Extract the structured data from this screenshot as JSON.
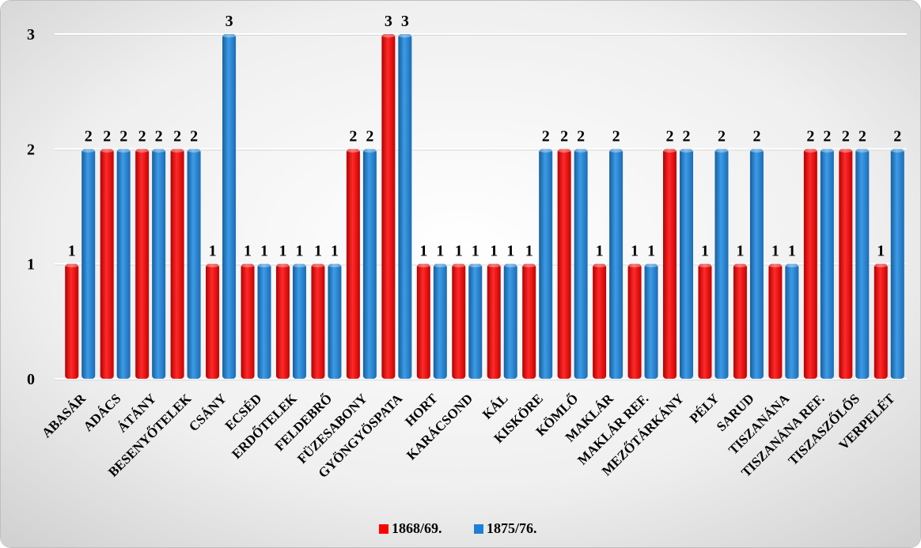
{
  "chart_data": {
    "type": "bar",
    "categories": [
      "ABASÁR",
      "ADÁCS",
      "ÁTÁNY",
      "BESENYŐTELEK",
      "CSÁNY",
      "ECSÉD",
      "ERDŐTELEK",
      "FELDEBRŐ",
      "FÜZESABONY",
      "GYÖNGYÖSPATA",
      "HORT",
      "KARÁCSOND",
      "KÁL",
      "KISKÖRE",
      "KÖMLŐ",
      "MAKLÁR",
      "MAKLÁR REF.",
      "MEZŐTÁRKÁNY",
      "PÉLY",
      "SARUD",
      "TISZANÁNA",
      "TISZANÁNA REF.",
      "TISZASZŐLŐS",
      "VERPELÉT"
    ],
    "series": [
      {
        "name": "1868/69.",
        "color": "#ff0000",
        "values": [
          1,
          2,
          2,
          2,
          1,
          1,
          1,
          1,
          2,
          3,
          1,
          1,
          1,
          1,
          2,
          1,
          1,
          2,
          1,
          1,
          1,
          2,
          2,
          1
        ]
      },
      {
        "name": "1875/76.",
        "color": "#1f7fd4",
        "values": [
          2,
          2,
          2,
          2,
          3,
          1,
          1,
          1,
          2,
          3,
          1,
          1,
          1,
          2,
          2,
          2,
          1,
          2,
          2,
          2,
          1,
          2,
          2,
          2
        ]
      }
    ],
    "y_ticks": [
      "0",
      "1",
      "2",
      "3"
    ],
    "ylim": [
      0,
      3
    ],
    "grid": true,
    "legend": "bottom-center",
    "data_labels": true
  }
}
